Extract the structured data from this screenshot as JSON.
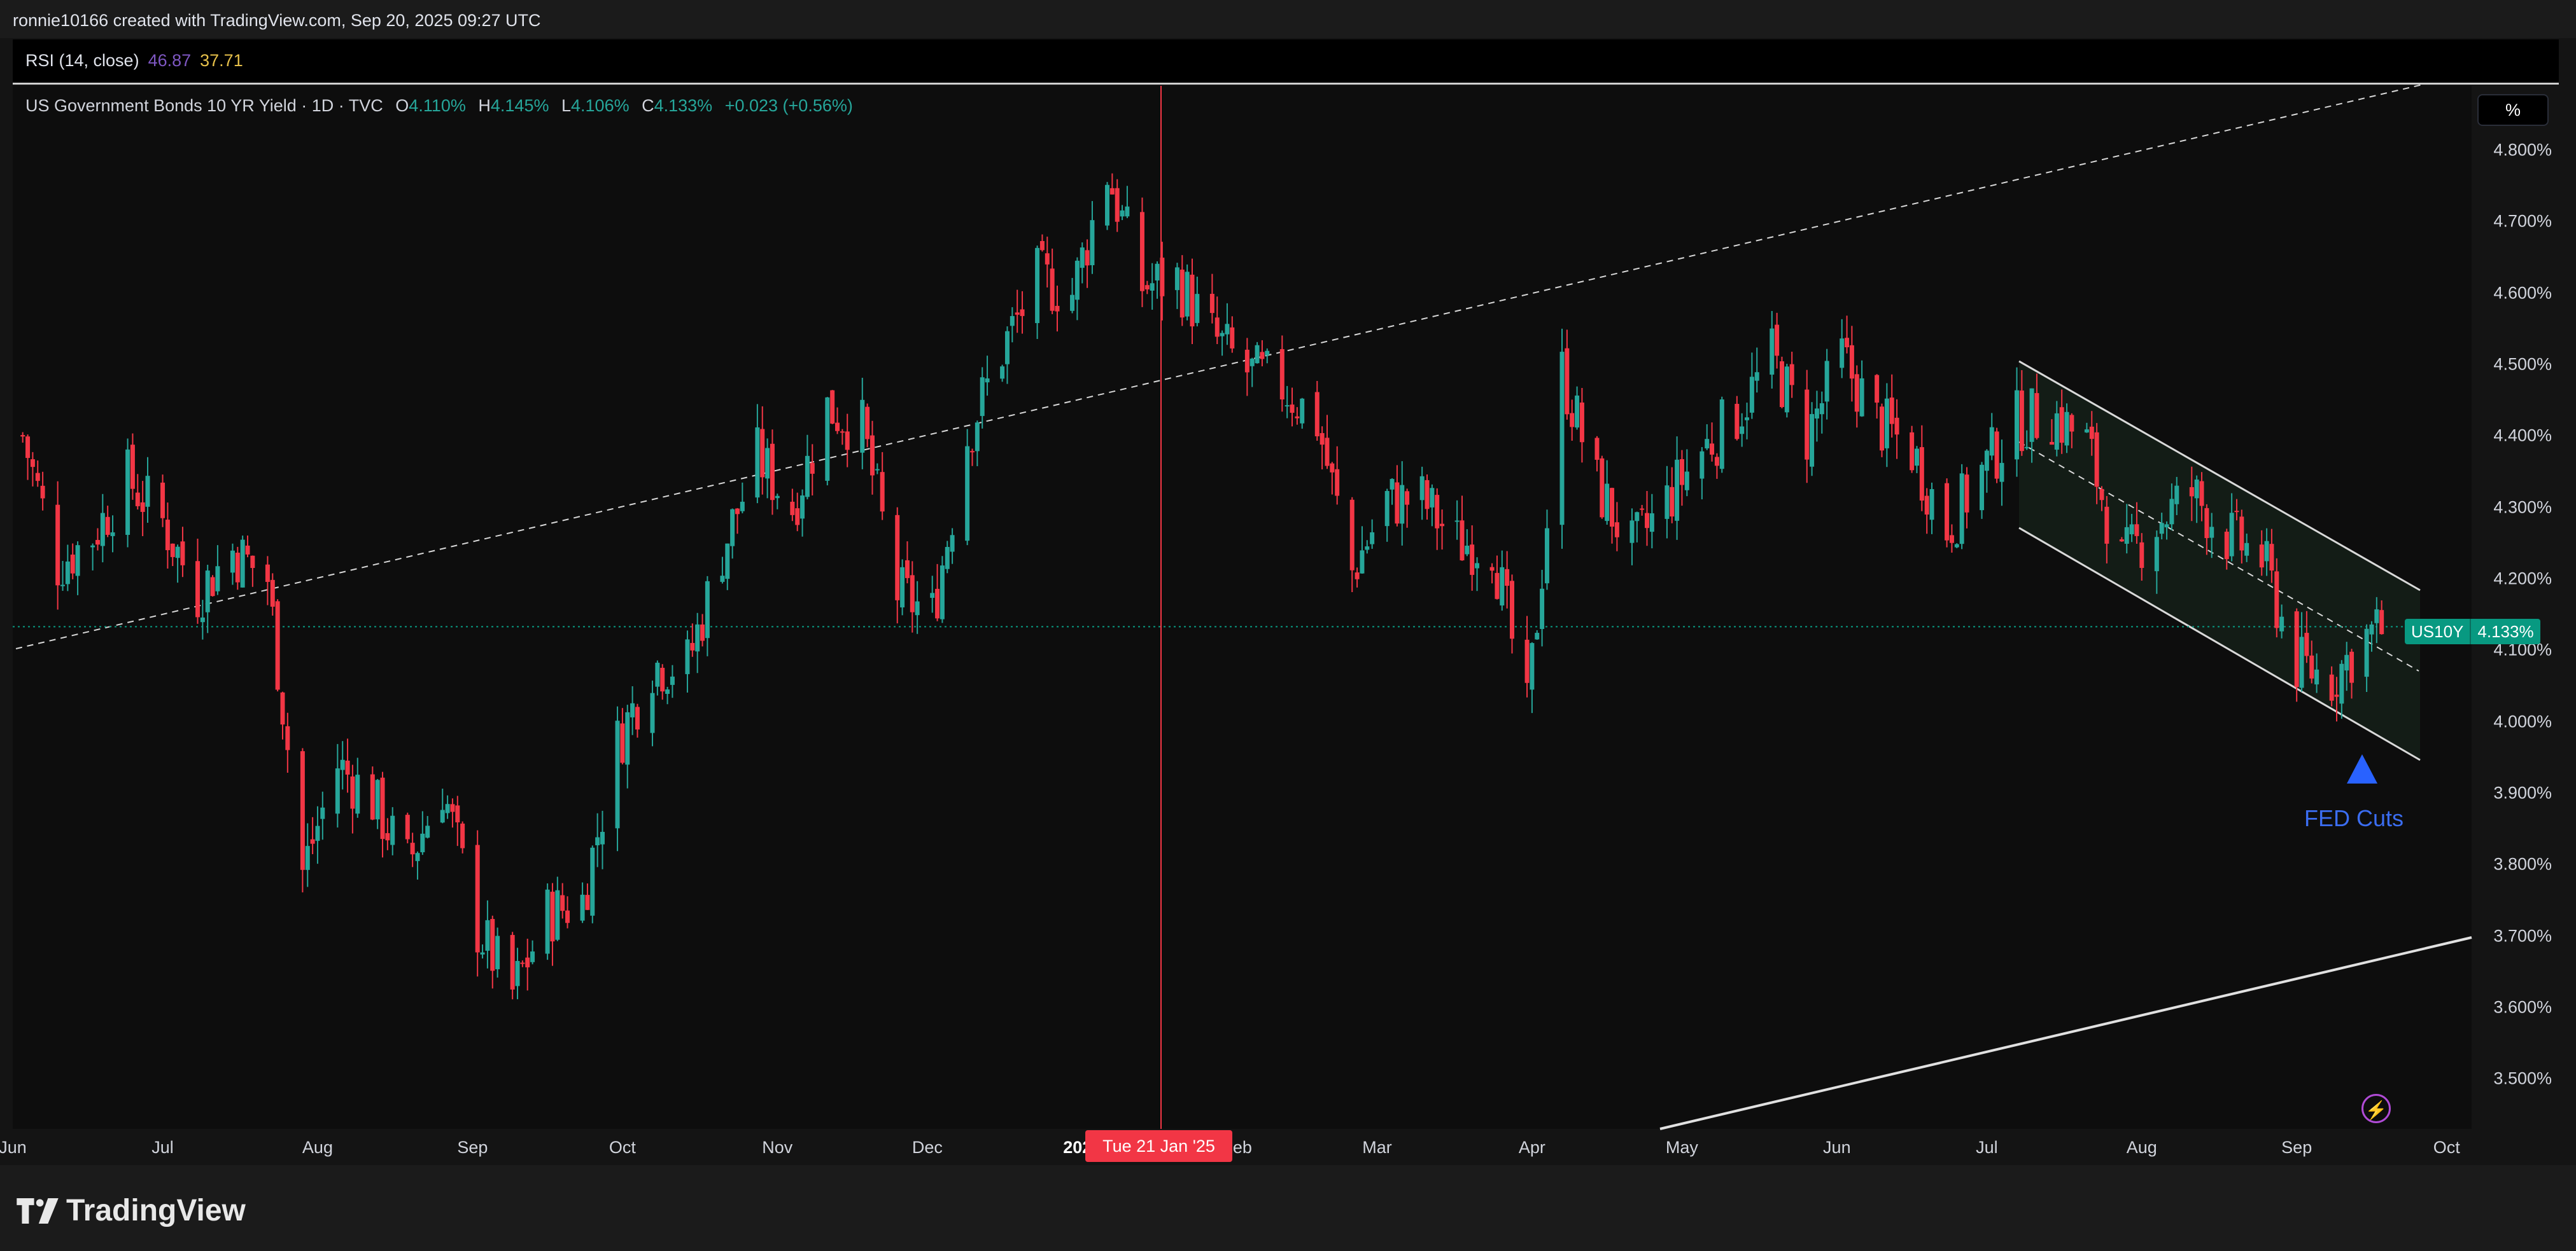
{
  "header": {
    "attribution": "ronnie10166 created with TradingView.com, Sep 20, 2025 09:27 UTC"
  },
  "rsi": {
    "label": "RSI (14, close)",
    "value1": "46.87",
    "value2": "37.71",
    "color1": "#7e57c2",
    "color2": "#e6c04a"
  },
  "legend": {
    "title": "US Government Bonds 10 YR Yield · 1D · TVC",
    "o_label": "O",
    "o_value": "4.110%",
    "h_label": "H",
    "h_value": "4.145%",
    "l_label": "L",
    "l_value": "4.106%",
    "c_label": "C",
    "c_value": "4.133%",
    "change": "+0.023 (+0.56%)"
  },
  "price_tag": {
    "symbol": "US10Y",
    "price": "4.133%"
  },
  "unit_button": "%",
  "crosshair_date": "Tue 21 Jan '25",
  "annotation": {
    "text": "FED Cuts",
    "icon": "up-triangle-icon",
    "color": "#2962ff"
  },
  "footer": {
    "brand": "TradingView"
  },
  "colors": {
    "up": "#26a69a",
    "down": "#f23645",
    "background": "#0d0d0d"
  },
  "chart_data": {
    "type": "candlestick",
    "y_unit": "%",
    "ylim": [
      3.43,
      4.89
    ],
    "y_ticks": [
      "4.800%",
      "4.700%",
      "4.600%",
      "4.500%",
      "4.400%",
      "4.300%",
      "4.200%",
      "4.100%",
      "4.000%",
      "3.900%",
      "3.800%",
      "3.700%",
      "3.600%",
      "3.500%"
    ],
    "x_ticks": [
      "Jun",
      "Jul",
      "Aug",
      "Sep",
      "Oct",
      "Nov",
      "Dec",
      "2025",
      "Feb",
      "Mar",
      "Apr",
      "May",
      "Jun",
      "Jul",
      "Aug",
      "Sep",
      "Oct"
    ],
    "x_range": [
      "2024-06-01",
      "2025-10-06"
    ],
    "last_close": 4.133,
    "grid": false,
    "closes": [
      [
        "2024-06-03",
        4.4
      ],
      [
        "2024-06-10",
        4.22
      ],
      [
        "2024-06-17",
        4.26
      ],
      [
        "2024-06-24",
        4.34
      ],
      [
        "2024-07-01",
        4.28
      ],
      [
        "2024-07-08",
        4.18
      ],
      [
        "2024-07-15",
        4.24
      ],
      [
        "2024-07-22",
        4.2
      ],
      [
        "2024-07-29",
        3.79
      ],
      [
        "2024-08-05",
        3.94
      ],
      [
        "2024-08-12",
        3.89
      ],
      [
        "2024-08-19",
        3.8
      ],
      [
        "2024-08-26",
        3.91
      ],
      [
        "2024-09-02",
        3.71
      ],
      [
        "2024-09-09",
        3.62
      ],
      [
        "2024-09-16",
        3.73
      ],
      [
        "2024-09-23",
        3.75
      ],
      [
        "2024-09-30",
        3.97
      ],
      [
        "2024-10-07",
        4.08
      ],
      [
        "2024-10-14",
        4.08
      ],
      [
        "2024-10-21",
        4.24
      ],
      [
        "2024-10-28",
        4.37
      ],
      [
        "2024-11-04",
        4.3
      ],
      [
        "2024-11-11",
        4.44
      ],
      [
        "2024-11-18",
        4.41
      ],
      [
        "2024-11-25",
        4.18
      ],
      [
        "2024-12-02",
        4.15
      ],
      [
        "2024-12-09",
        4.4
      ],
      [
        "2024-12-16",
        4.52
      ],
      [
        "2024-12-23",
        4.62
      ],
      [
        "2024-12-30",
        4.6
      ],
      [
        "2025-01-06",
        4.77
      ],
      [
        "2025-01-13",
        4.61
      ],
      [
        "2025-01-20",
        4.62
      ],
      [
        "2025-01-27",
        4.54
      ],
      [
        "2025-02-03",
        4.49
      ],
      [
        "2025-02-10",
        4.47
      ],
      [
        "2025-02-17",
        4.42
      ],
      [
        "2025-02-24",
        4.21
      ],
      [
        "2025-03-03",
        4.31
      ],
      [
        "2025-03-10",
        4.31
      ],
      [
        "2025-03-17",
        4.25
      ],
      [
        "2025-03-24",
        4.25
      ],
      [
        "2025-03-31",
        4.01
      ],
      [
        "2025-04-07",
        4.49
      ],
      [
        "2025-04-14",
        4.33
      ],
      [
        "2025-04-21",
        4.24
      ],
      [
        "2025-04-28",
        4.31
      ],
      [
        "2025-05-05",
        4.38
      ],
      [
        "2025-05-12",
        4.43
      ],
      [
        "2025-05-19",
        4.51
      ],
      [
        "2025-05-26",
        4.4
      ],
      [
        "2025-06-02",
        4.51
      ],
      [
        "2025-06-09",
        4.42
      ],
      [
        "2025-06-16",
        4.38
      ],
      [
        "2025-06-23",
        4.27
      ],
      [
        "2025-06-30",
        4.35
      ],
      [
        "2025-07-07",
        4.42
      ],
      [
        "2025-07-14",
        4.43
      ],
      [
        "2025-07-21",
        4.39
      ],
      [
        "2025-07-28",
        4.22
      ],
      [
        "2025-08-04",
        4.28
      ],
      [
        "2025-08-11",
        4.32
      ],
      [
        "2025-08-18",
        4.26
      ],
      [
        "2025-08-25",
        4.23
      ],
      [
        "2025-09-01",
        4.08
      ],
      [
        "2025-09-08",
        4.06
      ],
      [
        "2025-09-15",
        4.12
      ],
      [
        "2025-09-19",
        4.133
      ]
    ]
  }
}
